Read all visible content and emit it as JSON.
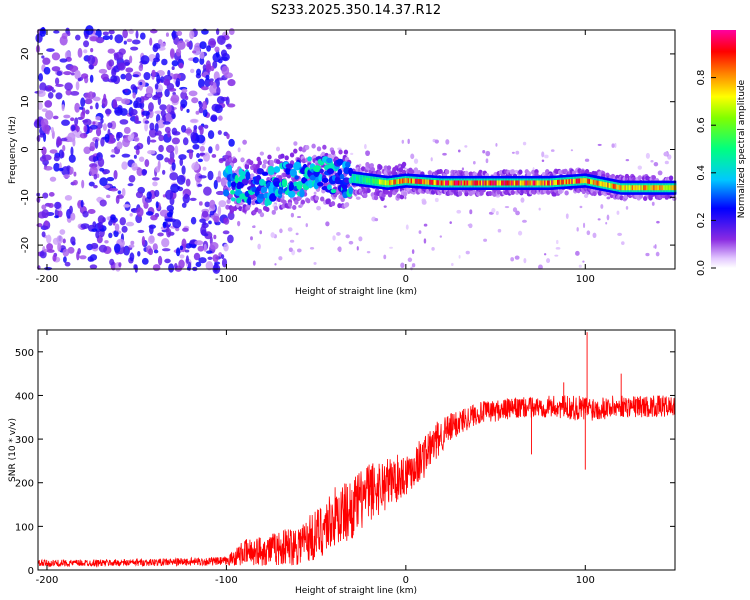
{
  "figure": {
    "title": "S233.2025.350.14.37.R12"
  },
  "colors": {
    "snr_line": "#ff0000",
    "axis": "#000000",
    "background": "#ffffff"
  },
  "chart_data": [
    {
      "type": "heatmap",
      "name": "spectrogram",
      "title": "S233.2025.350.14.37.R12",
      "xlabel": "Height of straight line (km)",
      "ylabel": "Frequency (Hz)",
      "xlim": [
        -205,
        150
      ],
      "ylim": [
        -25,
        25
      ],
      "xticks": [
        -200,
        -100,
        0,
        100
      ],
      "yticks": [
        20,
        10,
        0,
        -10,
        -20
      ],
      "colorbar": {
        "label": "Normalized spectral amplitude",
        "range": [
          0.0,
          1.0
        ],
        "ticks": [
          "0.0",
          "0.2",
          "0.4",
          "0.6",
          "0.8"
        ],
        "tick_values": [
          0.0,
          0.2,
          0.4,
          0.6,
          0.8
        ]
      },
      "ridge": {
        "description_points_x": [
          -100,
          -80,
          -60,
          -50,
          -40,
          -30,
          -20,
          -10,
          0,
          20,
          50,
          80,
          100,
          120,
          150
        ],
        "description_points_y": [
          -7,
          -8,
          -6,
          -5,
          -6,
          -6,
          -6.5,
          -7,
          -6.5,
          -7,
          -7,
          -7,
          -6.5,
          -8,
          -8
        ],
        "peak_amplitude": [
          0.3,
          0.35,
          0.45,
          0.5,
          0.5,
          0.5,
          0.6,
          0.8,
          0.9,
          0.95,
          0.95,
          0.95,
          0.9,
          0.85,
          0.8
        ]
      },
      "noise_region": {
        "x_from": -205,
        "x_to": -97,
        "amplitude": [
          0.05,
          0.25
        ]
      }
    },
    {
      "type": "line",
      "name": "snr",
      "xlabel": "Height of straight line (km)",
      "ylabel": "SNR (10 * v/v)",
      "xlim": [
        -205,
        150
      ],
      "ylim": [
        0,
        550
      ],
      "xticks": [
        -200,
        -100,
        0,
        100
      ],
      "yticks": [
        0,
        100,
        200,
        300,
        400,
        500
      ],
      "envelope_x": [
        -205,
        -150,
        -100,
        -90,
        -80,
        -70,
        -60,
        -50,
        -40,
        -30,
        -20,
        -10,
        0,
        10,
        20,
        30,
        40,
        60,
        80,
        100,
        120,
        150
      ],
      "envelope_y_mean": [
        15,
        17,
        20,
        40,
        45,
        50,
        60,
        80,
        120,
        140,
        180,
        200,
        220,
        260,
        310,
        340,
        360,
        370,
        375,
        370,
        375,
        375
      ],
      "envelope_y_spread": [
        8,
        8,
        10,
        30,
        35,
        40,
        50,
        60,
        70,
        70,
        70,
        60,
        50,
        50,
        40,
        30,
        25,
        25,
        25,
        30,
        25,
        25
      ],
      "spikes": [
        {
          "x": 101,
          "y": 545
        },
        {
          "x": 100,
          "y": 230
        },
        {
          "x": 70,
          "y": 265
        },
        {
          "x": 88,
          "y": 430
        },
        {
          "x": 120,
          "y": 450
        }
      ]
    }
  ]
}
